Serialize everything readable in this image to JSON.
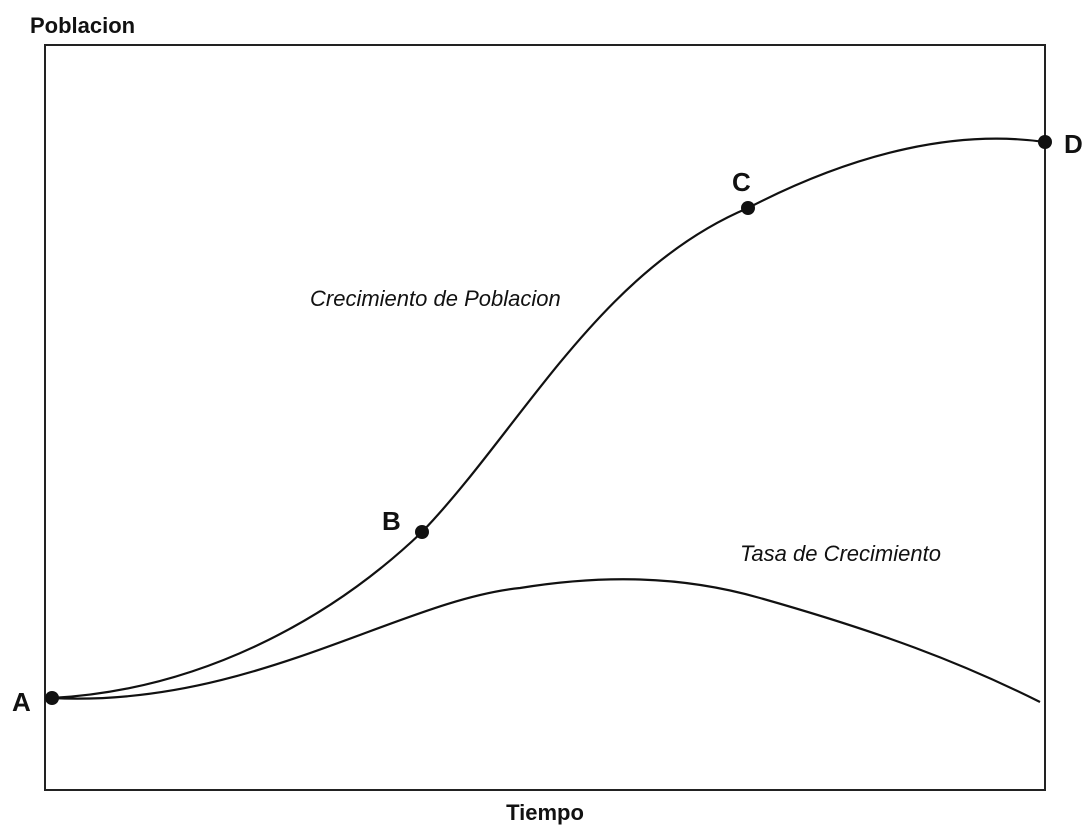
{
  "diagram": {
    "y_axis_label": "Poblacion",
    "x_axis_label": "Tiempo",
    "curves": [
      {
        "label": "Crecimiento de Poblacion"
      },
      {
        "label": "Tasa de Crecimiento"
      }
    ],
    "points": [
      {
        "label": "A"
      },
      {
        "label": "B"
      },
      {
        "label": "C"
      },
      {
        "label": "D"
      }
    ]
  }
}
